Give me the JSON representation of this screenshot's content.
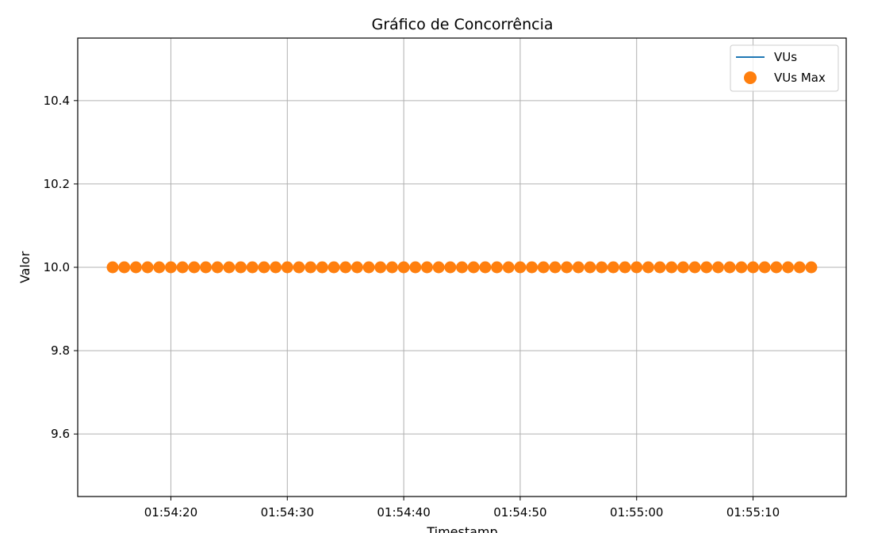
{
  "chart_data": {
    "type": "line",
    "title": "Gráfico de Concorrência",
    "xlabel": "Timestamp",
    "ylabel": "Valor",
    "x_ticks": [
      "01:54:20",
      "01:54:30",
      "01:54:40",
      "01:54:50",
      "01:55:00",
      "01:55:10"
    ],
    "y_ticks": [
      "9.6",
      "9.8",
      "10.0",
      "10.2",
      "10.4"
    ],
    "ylim": [
      9.45,
      10.55
    ],
    "xlim": [
      "01:54:12",
      "01:55:18"
    ],
    "grid": true,
    "legend_position": "top-right",
    "series": [
      {
        "name": "VUs",
        "style": "line",
        "color": "#1f77b4",
        "x": [
          "01:54:15",
          "01:54:16",
          "01:54:17",
          "01:54:18",
          "01:54:19",
          "01:54:20",
          "01:54:21",
          "01:54:22",
          "01:54:23",
          "01:54:24",
          "01:54:25",
          "01:54:26",
          "01:54:27",
          "01:54:28",
          "01:54:29",
          "01:54:30",
          "01:54:31",
          "01:54:32",
          "01:54:33",
          "01:54:34",
          "01:54:35",
          "01:54:36",
          "01:54:37",
          "01:54:38",
          "01:54:39",
          "01:54:40",
          "01:54:41",
          "01:54:42",
          "01:54:43",
          "01:54:44",
          "01:54:45",
          "01:54:46",
          "01:54:47",
          "01:54:48",
          "01:54:49",
          "01:54:50",
          "01:54:51",
          "01:54:52",
          "01:54:53",
          "01:54:54",
          "01:54:55",
          "01:54:56",
          "01:54:57",
          "01:54:58",
          "01:54:59",
          "01:55:00",
          "01:55:01",
          "01:55:02",
          "01:55:03",
          "01:55:04",
          "01:55:05",
          "01:55:06",
          "01:55:07",
          "01:55:08",
          "01:55:09",
          "01:55:10",
          "01:55:11",
          "01:55:12",
          "01:55:13",
          "01:55:14",
          "01:55:15"
        ],
        "y": [
          10,
          10,
          10,
          10,
          10,
          10,
          10,
          10,
          10,
          10,
          10,
          10,
          10,
          10,
          10,
          10,
          10,
          10,
          10,
          10,
          10,
          10,
          10,
          10,
          10,
          10,
          10,
          10,
          10,
          10,
          10,
          10,
          10,
          10,
          10,
          10,
          10,
          10,
          10,
          10,
          10,
          10,
          10,
          10,
          10,
          10,
          10,
          10,
          10,
          10,
          10,
          10,
          10,
          10,
          10,
          10,
          10,
          10,
          10,
          10,
          10
        ]
      },
      {
        "name": "VUs Max",
        "style": "markers",
        "color": "#ff7f0e",
        "x": [
          "01:54:15",
          "01:54:16",
          "01:54:17",
          "01:54:18",
          "01:54:19",
          "01:54:20",
          "01:54:21",
          "01:54:22",
          "01:54:23",
          "01:54:24",
          "01:54:25",
          "01:54:26",
          "01:54:27",
          "01:54:28",
          "01:54:29",
          "01:54:30",
          "01:54:31",
          "01:54:32",
          "01:54:33",
          "01:54:34",
          "01:54:35",
          "01:54:36",
          "01:54:37",
          "01:54:38",
          "01:54:39",
          "01:54:40",
          "01:54:41",
          "01:54:42",
          "01:54:43",
          "01:54:44",
          "01:54:45",
          "01:54:46",
          "01:54:47",
          "01:54:48",
          "01:54:49",
          "01:54:50",
          "01:54:51",
          "01:54:52",
          "01:54:53",
          "01:54:54",
          "01:54:55",
          "01:54:56",
          "01:54:57",
          "01:54:58",
          "01:54:59",
          "01:55:00",
          "01:55:01",
          "01:55:02",
          "01:55:03",
          "01:55:04",
          "01:55:05",
          "01:55:06",
          "01:55:07",
          "01:55:08",
          "01:55:09",
          "01:55:10",
          "01:55:11",
          "01:55:12",
          "01:55:13",
          "01:55:14",
          "01:55:15"
        ],
        "y": [
          10,
          10,
          10,
          10,
          10,
          10,
          10,
          10,
          10,
          10,
          10,
          10,
          10,
          10,
          10,
          10,
          10,
          10,
          10,
          10,
          10,
          10,
          10,
          10,
          10,
          10,
          10,
          10,
          10,
          10,
          10,
          10,
          10,
          10,
          10,
          10,
          10,
          10,
          10,
          10,
          10,
          10,
          10,
          10,
          10,
          10,
          10,
          10,
          10,
          10,
          10,
          10,
          10,
          10,
          10,
          10,
          10,
          10,
          10,
          10,
          10
        ]
      }
    ]
  }
}
